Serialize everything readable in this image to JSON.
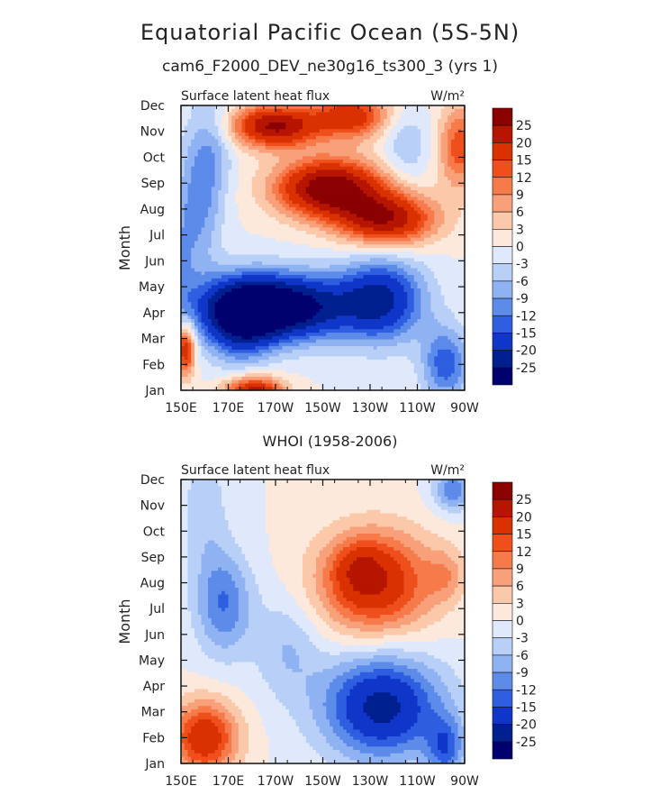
{
  "page": {
    "title": "Equatorial Pacific Ocean (5S-5N)",
    "subtitle": "cam6_F2000_DEV_ne30g16_ts300_3 (yrs 1)"
  },
  "legend_levels": [
    "25",
    "20",
    "15",
    "12",
    "9",
    "6",
    "3",
    "0",
    "-3",
    "-6",
    "-9",
    "-12",
    "-15",
    "-20",
    "-25"
  ],
  "legend_colors": [
    "#8b0000",
    "#b61500",
    "#d93200",
    "#ef4f1a",
    "#f67a4a",
    "#f8a07a",
    "#fbc8aa",
    "#fde8dc",
    "#dfe9fb",
    "#b8cff7",
    "#8fb2f2",
    "#5d8bea",
    "#2f5fe0",
    "#0f36c8",
    "#002090",
    "#00006e"
  ],
  "chart_data": [
    {
      "type": "heatmap",
      "title": "",
      "left_label": "Surface latent heat flux",
      "units": "W/m²",
      "xlabel": "",
      "ylabel": "Month",
      "x_ticks": [
        "150E",
        "170E",
        "170W",
        "150W",
        "130W",
        "110W",
        "90W"
      ],
      "x_range": [
        150,
        270
      ],
      "y_ticks": [
        "Jan",
        "Feb",
        "Mar",
        "Apr",
        "May",
        "Jun",
        "Jul",
        "Aug",
        "Sep",
        "Oct",
        "Nov",
        "Dec"
      ],
      "levels": [
        -25,
        -20,
        -15,
        -12,
        -9,
        -6,
        -3,
        0,
        3,
        6,
        9,
        12,
        15,
        20,
        25
      ],
      "features": [
        {
          "lon": 190,
          "mon": 3.2,
          "value": -34,
          "sx": 30,
          "sy": 1.25
        },
        {
          "lon": 175,
          "mon": 2.6,
          "value": -16,
          "sx": 14,
          "sy": 1.5
        },
        {
          "lon": 235,
          "mon": 3.5,
          "value": -20,
          "sx": 18,
          "sy": 1.6
        },
        {
          "lon": 262,
          "mon": 1.0,
          "value": -14,
          "sx": 10,
          "sy": 1.4
        },
        {
          "lon": 158,
          "mon": 7.5,
          "value": -10,
          "sx": 9,
          "sy": 3.0
        },
        {
          "lon": 150,
          "mon": 5.0,
          "value": -6,
          "sx": 6,
          "sy": 2.5
        },
        {
          "lon": 213,
          "mon": 7.8,
          "value": 30,
          "sx": 22,
          "sy": 1.1
        },
        {
          "lon": 237,
          "mon": 6.6,
          "value": 24,
          "sx": 20,
          "sy": 1.0
        },
        {
          "lon": 190,
          "mon": 10.2,
          "value": 26,
          "sx": 18,
          "sy": 0.8
        },
        {
          "lon": 222,
          "mon": 10.6,
          "value": 18,
          "sx": 16,
          "sy": 0.9
        },
        {
          "lon": 268,
          "mon": 9.4,
          "value": 14,
          "sx": 9,
          "sy": 1.6
        },
        {
          "lon": 181,
          "mon": -0.1,
          "value": 24,
          "sx": 12,
          "sy": 0.6
        },
        {
          "lon": 152,
          "mon": 1.6,
          "value": 20,
          "sx": 4,
          "sy": 1.0
        },
        {
          "lon": 165,
          "mon": 9.5,
          "value": -5,
          "sx": 8,
          "sy": 2.0
        },
        {
          "lon": 245,
          "mon": 9.5,
          "value": -6,
          "sx": 10,
          "sy": 1.5
        }
      ]
    },
    {
      "type": "heatmap",
      "title": "WHOI (1958-2006)",
      "left_label": "Surface latent heat flux",
      "units": "W/m²",
      "xlabel": "",
      "ylabel": "Month",
      "x_ticks": [
        "150E",
        "170E",
        "170W",
        "150W",
        "130W",
        "110W",
        "90W"
      ],
      "x_range": [
        150,
        270
      ],
      "y_ticks": [
        "Jan",
        "Feb",
        "Mar",
        "Apr",
        "May",
        "Jun",
        "Jul",
        "Aug",
        "Sep",
        "Oct",
        "Nov",
        "Dec"
      ],
      "levels": [
        -25,
        -20,
        -15,
        -12,
        -9,
        -6,
        -3,
        0,
        3,
        6,
        9,
        12,
        15,
        20,
        25
      ],
      "features": [
        {
          "lon": 232,
          "mon": 7.0,
          "value": 20,
          "sx": 24,
          "sy": 2.0
        },
        {
          "lon": 225,
          "mon": 7.6,
          "value": 6,
          "sx": 10,
          "sy": 1.0
        },
        {
          "lon": 262,
          "mon": 7.3,
          "value": 6,
          "sx": 8,
          "sy": 1.0
        },
        {
          "lon": 160,
          "mon": 1.0,
          "value": 19,
          "sx": 14,
          "sy": 1.4
        },
        {
          "lon": 235,
          "mon": 2.2,
          "value": -22,
          "sx": 25,
          "sy": 2.0
        },
        {
          "lon": 262,
          "mon": 0.6,
          "value": -12,
          "sx": 8,
          "sy": 1.2
        },
        {
          "lon": 168,
          "mon": 6.2,
          "value": -12,
          "sx": 12,
          "sy": 2.0
        },
        {
          "lon": 160,
          "mon": 9.8,
          "value": -5,
          "sx": 10,
          "sy": 2.5
        },
        {
          "lon": 265,
          "mon": 10.6,
          "value": -12,
          "sx": 8,
          "sy": 0.8
        },
        {
          "lon": 195,
          "mon": 4.5,
          "value": -6,
          "sx": 14,
          "sy": 2.0
        }
      ]
    }
  ]
}
